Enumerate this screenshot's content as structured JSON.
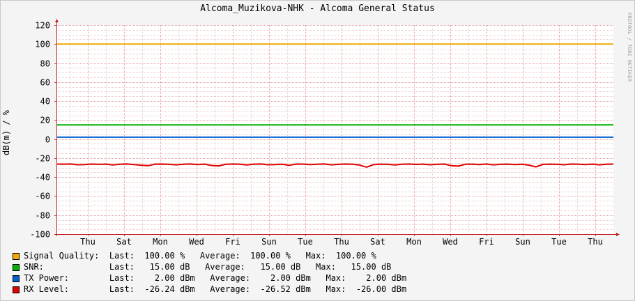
{
  "chart_data": {
    "type": "line",
    "title": "Alcoma_Muzikova-NHK - Alcoma General Status",
    "ylabel": "dB(m) / %",
    "xlabel": "",
    "ylim": [
      -100,
      120
    ],
    "yticks": [
      120,
      100,
      80,
      60,
      40,
      20,
      0,
      -20,
      -40,
      -60,
      -80,
      -100
    ],
    "x_tick_labels": [
      "Thu",
      "Sat",
      "Mon",
      "Wed",
      "Fri",
      "Sun",
      "Tue",
      "Thu",
      "Sat",
      "Mon",
      "Wed",
      "Fri",
      "Sun",
      "Tue",
      "Thu"
    ],
    "grid": true,
    "legend_placement": "bottom",
    "watermark": "RRDTOOL / TOBI OETIKER",
    "series": [
      {
        "name": "Signal Quality:",
        "color": "#f3a800",
        "values": [
          100.0,
          100.0
        ],
        "legend": "Signal Quality:  Last:  100.00 %   Average:  100.00 %   Max:  100.00 %"
      },
      {
        "name": "SNR:",
        "color": "#00b300",
        "values": [
          15.0,
          15.0
        ],
        "legend": "SNR:             Last:   15.00 dB   Average:   15.00 dB   Max:   15.00 dB"
      },
      {
        "name": "TX Power:",
        "color": "#0060d0",
        "values": [
          2.0,
          2.0
        ],
        "legend": "TX Power:        Last:    2.00 dBm   Average:    2.00 dBm   Max:    2.00 dBm"
      },
      {
        "name": "RX Level:",
        "color": "#e00000",
        "values": [
          -26.3,
          -26.5,
          -26.2,
          -27.0,
          -26.8,
          -26.3,
          -26.6,
          -26.4,
          -27.2,
          -26.5,
          -26.2,
          -26.9,
          -27.5,
          -28.0,
          -26.4,
          -26.3,
          -26.6,
          -27.1,
          -26.5,
          -26.2,
          -26.8,
          -26.4,
          -27.8,
          -28.2,
          -26.6,
          -26.3,
          -26.5,
          -27.2,
          -26.4,
          -26.2,
          -27.0,
          -26.8,
          -26.5,
          -27.6,
          -26.3,
          -26.4,
          -26.9,
          -26.5,
          -26.2,
          -27.1,
          -26.6,
          -26.3,
          -26.5,
          -27.3,
          -29.5,
          -26.8,
          -26.4,
          -26.6,
          -27.2,
          -26.5,
          -26.3,
          -26.7,
          -26.4,
          -27.0,
          -26.6,
          -26.3,
          -27.9,
          -28.4,
          -26.5,
          -26.4,
          -26.8,
          -26.3,
          -27.1,
          -26.6,
          -26.4,
          -26.9,
          -26.5,
          -27.4,
          -29.2,
          -26.7,
          -26.4,
          -26.6,
          -27.0,
          -26.3,
          -26.5,
          -26.8,
          -26.4,
          -27.1,
          -26.5,
          -26.3
        ],
        "legend": "RX Level:        Last:  -26.24 dBm   Average:  -26.52 dBm   Max:  -26.00 dBm"
      }
    ]
  }
}
